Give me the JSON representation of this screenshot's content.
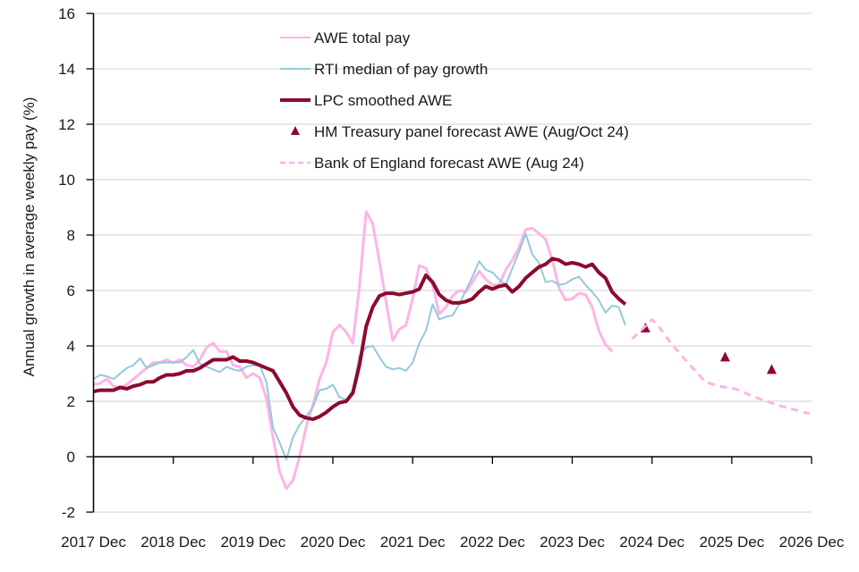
{
  "chart_data": {
    "type": "line",
    "title": "",
    "xlabel": "",
    "ylabel": "Annual growth in average weekly pay (%)",
    "ylim": [
      -2,
      16
    ],
    "yticks": [
      -2,
      0,
      2,
      4,
      6,
      8,
      10,
      12,
      14,
      16
    ],
    "x_unit": "months since Dec 2017",
    "xlim": [
      0,
      108
    ],
    "xtick_positions": [
      0,
      12,
      24,
      36,
      48,
      60,
      72,
      84,
      96,
      108
    ],
    "xtick_labels": [
      "2017 Dec",
      "2018 Dec",
      "2019 Dec",
      "2020 Dec",
      "2021 Dec",
      "2022 Dec",
      "2023 Dec",
      "2024 Dec",
      "2025 Dec",
      "2026 Dec"
    ],
    "grid": "horizontal",
    "legend_position": "top-center",
    "series": [
      {
        "name": "AWE total pay",
        "style": "line",
        "color": "#ffb3e6",
        "x_start": 0,
        "values": [
          2.6,
          2.65,
          2.8,
          2.55,
          2.5,
          2.6,
          2.8,
          3.0,
          3.2,
          3.4,
          3.4,
          3.5,
          3.4,
          3.5,
          3.3,
          3.25,
          3.5,
          3.95,
          4.1,
          3.8,
          3.8,
          3.3,
          3.25,
          2.85,
          3.0,
          2.85,
          2.1,
          0.7,
          -0.55,
          -1.15,
          -0.85,
          0.0,
          1.1,
          1.85,
          2.8,
          3.4,
          4.5,
          4.75,
          4.5,
          4.1,
          6.15,
          8.85,
          8.4,
          7.05,
          5.6,
          4.2,
          4.6,
          4.75,
          5.7,
          6.9,
          6.8,
          6.2,
          5.15,
          5.4,
          5.8,
          6.0,
          5.95,
          6.3,
          6.7,
          6.4,
          6.2,
          6.2,
          6.75,
          7.1,
          7.55,
          8.2,
          8.25,
          8.05,
          7.85,
          7.1,
          6.1,
          5.65,
          5.7,
          5.9,
          5.85,
          5.4,
          4.55,
          4.05,
          3.8
        ]
      },
      {
        "name": "RTI median of pay growth",
        "style": "line",
        "color": "#94c9d8",
        "x_start": 0,
        "values": [
          2.8,
          2.95,
          2.9,
          2.8,
          3.0,
          3.2,
          3.3,
          3.55,
          3.2,
          3.3,
          3.4,
          3.4,
          3.4,
          3.4,
          3.6,
          3.85,
          3.35,
          3.25,
          3.15,
          3.05,
          3.25,
          3.15,
          3.1,
          3.25,
          3.3,
          3.3,
          2.7,
          1.05,
          0.5,
          -0.1,
          0.7,
          1.15,
          1.45,
          1.8,
          2.4,
          2.45,
          2.6,
          2.15,
          2.05,
          2.4,
          3.65,
          3.95,
          4.0,
          3.6,
          3.25,
          3.15,
          3.2,
          3.1,
          3.4,
          4.1,
          4.55,
          5.5,
          4.95,
          5.05,
          5.1,
          5.5,
          6.0,
          6.5,
          7.05,
          6.75,
          6.65,
          6.4,
          6.2,
          6.8,
          7.4,
          8.05,
          7.3,
          7.0,
          6.3,
          6.35,
          6.2,
          6.25,
          6.4,
          6.5,
          6.2,
          5.95,
          5.65,
          5.2,
          5.45,
          5.4,
          4.75
        ]
      },
      {
        "name": "LPC smoothed AWE",
        "style": "line",
        "color": "#8c0a2e",
        "x_start": 0,
        "values": [
          2.35,
          2.4,
          2.4,
          2.4,
          2.5,
          2.45,
          2.55,
          2.6,
          2.7,
          2.7,
          2.85,
          2.95,
          2.95,
          3.0,
          3.1,
          3.1,
          3.2,
          3.35,
          3.5,
          3.5,
          3.5,
          3.6,
          3.45,
          3.45,
          3.4,
          3.3,
          3.2,
          3.1,
          2.7,
          2.3,
          1.8,
          1.5,
          1.4,
          1.35,
          1.45,
          1.6,
          1.8,
          1.95,
          2.0,
          2.3,
          3.3,
          4.7,
          5.4,
          5.8,
          5.9,
          5.9,
          5.85,
          5.9,
          5.95,
          6.05,
          6.55,
          6.3,
          5.85,
          5.65,
          5.55,
          5.55,
          5.6,
          5.7,
          5.95,
          6.15,
          6.05,
          6.15,
          6.2,
          5.95,
          6.15,
          6.45,
          6.65,
          6.85,
          6.95,
          7.15,
          7.1,
          6.95,
          7.0,
          6.95,
          6.85,
          6.95,
          6.65,
          6.45,
          5.95,
          5.7,
          5.5
        ]
      },
      {
        "name": "HM Treasury panel forecast AWE (Aug/Oct 24)",
        "style": "marker-triangle",
        "color": "#8c0a2e",
        "points": [
          {
            "x": 83,
            "y": 4.65
          },
          {
            "x": 95,
            "y": 3.6
          },
          {
            "x": 102,
            "y": 3.15
          }
        ]
      },
      {
        "name": "Bank of England forecast AWE (Aug 24)",
        "style": "dashed",
        "color": "#ffb3e6",
        "points": [
          {
            "x": 81,
            "y": 4.25
          },
          {
            "x": 84,
            "y": 4.95
          },
          {
            "x": 85,
            "y": 4.7
          },
          {
            "x": 87,
            "y": 4.05
          },
          {
            "x": 89,
            "y": 3.5
          },
          {
            "x": 90.5,
            "y": 3.1
          },
          {
            "x": 92,
            "y": 2.7
          },
          {
            "x": 94,
            "y": 2.55
          },
          {
            "x": 96.5,
            "y": 2.45
          },
          {
            "x": 100,
            "y": 2.1
          },
          {
            "x": 103,
            "y": 1.85
          },
          {
            "x": 107.7,
            "y": 1.55
          }
        ]
      }
    ]
  }
}
